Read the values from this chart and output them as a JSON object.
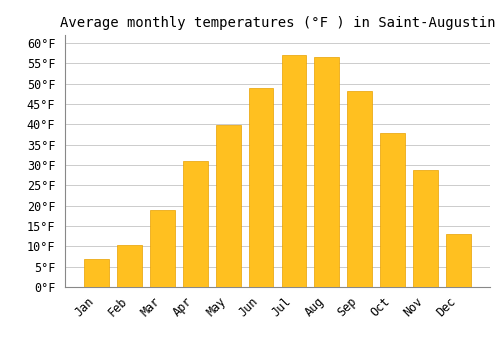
{
  "title": "Average monthly temperatures (°F ) in Saint-Augustin",
  "months": [
    "Jan",
    "Feb",
    "Mar",
    "Apr",
    "May",
    "Jun",
    "Jul",
    "Aug",
    "Sep",
    "Oct",
    "Nov",
    "Dec"
  ],
  "temperatures": [
    6.8,
    10.3,
    18.9,
    31.1,
    39.9,
    48.9,
    57.2,
    56.5,
    48.3,
    37.8,
    28.9,
    13.1
  ],
  "bar_color": "#FFC020",
  "bar_edge_color": "#E8A000",
  "background_color": "#FFFFFF",
  "grid_color": "#CCCCCC",
  "ylim": [
    0,
    62
  ],
  "yticks": [
    0,
    5,
    10,
    15,
    20,
    25,
    30,
    35,
    40,
    45,
    50,
    55,
    60
  ],
  "title_fontsize": 10,
  "tick_fontsize": 8.5,
  "tick_font": "monospace",
  "bar_width": 0.75
}
